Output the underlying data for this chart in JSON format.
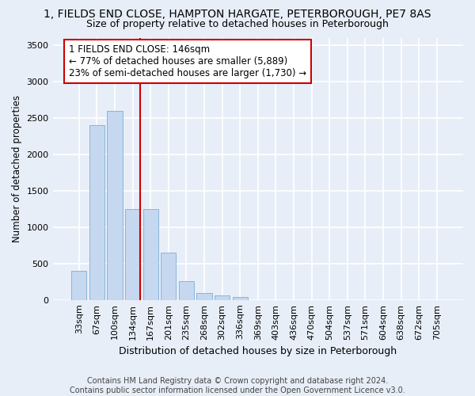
{
  "title": "1, FIELDS END CLOSE, HAMPTON HARGATE, PETERBOROUGH, PE7 8AS",
  "subtitle": "Size of property relative to detached houses in Peterborough",
  "xlabel": "Distribution of detached houses by size in Peterborough",
  "ylabel": "Number of detached properties",
  "footer_line1": "Contains HM Land Registry data © Crown copyright and database right 2024.",
  "footer_line2": "Contains public sector information licensed under the Open Government Licence v3.0.",
  "categories": [
    "33sqm",
    "67sqm",
    "100sqm",
    "134sqm",
    "167sqm",
    "201sqm",
    "235sqm",
    "268sqm",
    "302sqm",
    "336sqm",
    "369sqm",
    "403sqm",
    "436sqm",
    "470sqm",
    "504sqm",
    "537sqm",
    "571sqm",
    "604sqm",
    "638sqm",
    "672sqm",
    "705sqm"
  ],
  "values": [
    400,
    2400,
    2600,
    1250,
    1250,
    650,
    260,
    100,
    60,
    40,
    0,
    0,
    0,
    0,
    0,
    0,
    0,
    0,
    0,
    0,
    0
  ],
  "bar_color": "#c5d8f0",
  "bar_edge_color": "#7aaed4",
  "annotation_box_text": "1 FIELDS END CLOSE: 146sqm\n← 77% of detached houses are smaller (5,889)\n23% of semi-detached houses are larger (1,730) →",
  "annotation_box_color": "white",
  "annotation_box_edge_color": "#cc0000",
  "annotation_line_color": "#cc0000",
  "ylim": [
    0,
    3600
  ],
  "yticks": [
    0,
    500,
    1000,
    1500,
    2000,
    2500,
    3000,
    3500
  ],
  "background_color": "#e8eef8",
  "grid_color": "white",
  "title_fontsize": 10,
  "subtitle_fontsize": 9,
  "xlabel_fontsize": 9,
  "ylabel_fontsize": 8.5,
  "tick_fontsize": 8,
  "footer_fontsize": 7
}
